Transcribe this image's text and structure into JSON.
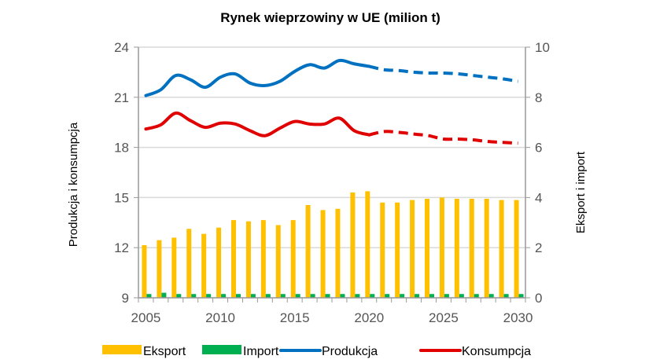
{
  "chart_data": {
    "type": "bar+line",
    "title": "Rynek wieprzowiny w UE (milion t)",
    "ylabel_left": "Produkcja i konsumpcja",
    "ylabel_right": "Eksport i import",
    "ylim_left": [
      9,
      24
    ],
    "yticks_left": [
      9,
      12,
      15,
      18,
      21,
      24
    ],
    "ylim_right": [
      0,
      10
    ],
    "yticks_right": [
      0,
      2,
      4,
      6,
      8,
      10
    ],
    "x": [
      2005,
      2006,
      2007,
      2008,
      2009,
      2010,
      2011,
      2012,
      2013,
      2014,
      2015,
      2016,
      2017,
      2018,
      2019,
      2020,
      2021,
      2022,
      2023,
      2024,
      2025,
      2026,
      2027,
      2028,
      2029,
      2030
    ],
    "xticks": [
      "2005",
      "2010",
      "2015",
      "2020",
      "2025",
      "2030"
    ],
    "grid": true,
    "legend_position": "bottom",
    "forecast_from": 2020,
    "series": [
      {
        "name": "Eksport",
        "type": "bar",
        "axis": "right",
        "color": "#FFC000",
        "values": [
          2.1,
          2.3,
          2.4,
          2.75,
          2.55,
          2.8,
          3.1,
          3.05,
          3.1,
          2.9,
          3.1,
          3.7,
          3.5,
          3.55,
          4.2,
          4.25,
          3.8,
          3.8,
          3.9,
          3.95,
          4.0,
          3.95,
          3.95,
          3.95,
          3.9,
          3.9
        ]
      },
      {
        "name": "Import",
        "type": "bar",
        "axis": "right",
        "color": "#00B050",
        "values": [
          0.15,
          0.2,
          0.15,
          0.15,
          0.15,
          0.15,
          0.15,
          0.15,
          0.15,
          0.15,
          0.15,
          0.15,
          0.15,
          0.15,
          0.15,
          0.15,
          0.15,
          0.15,
          0.15,
          0.15,
          0.15,
          0.15,
          0.15,
          0.15,
          0.15,
          0.15
        ]
      },
      {
        "name": "Produkcja",
        "type": "line",
        "axis": "left",
        "color": "#0070C0",
        "values": [
          21.1,
          21.45,
          22.3,
          22.05,
          21.6,
          22.2,
          22.4,
          21.85,
          21.7,
          21.95,
          22.55,
          22.95,
          22.75,
          23.2,
          23.0,
          22.85,
          22.65,
          22.6,
          22.5,
          22.45,
          22.45,
          22.4,
          22.3,
          22.2,
          22.1,
          21.95
        ]
      },
      {
        "name": "Konsumpcja",
        "type": "line",
        "axis": "left",
        "color": "#E00000",
        "values": [
          19.1,
          19.35,
          20.05,
          19.6,
          19.2,
          19.45,
          19.4,
          19.0,
          18.7,
          19.15,
          19.55,
          19.4,
          19.4,
          19.75,
          19.0,
          18.75,
          18.95,
          18.9,
          18.8,
          18.7,
          18.5,
          18.5,
          18.45,
          18.35,
          18.3,
          18.25
        ]
      }
    ]
  }
}
